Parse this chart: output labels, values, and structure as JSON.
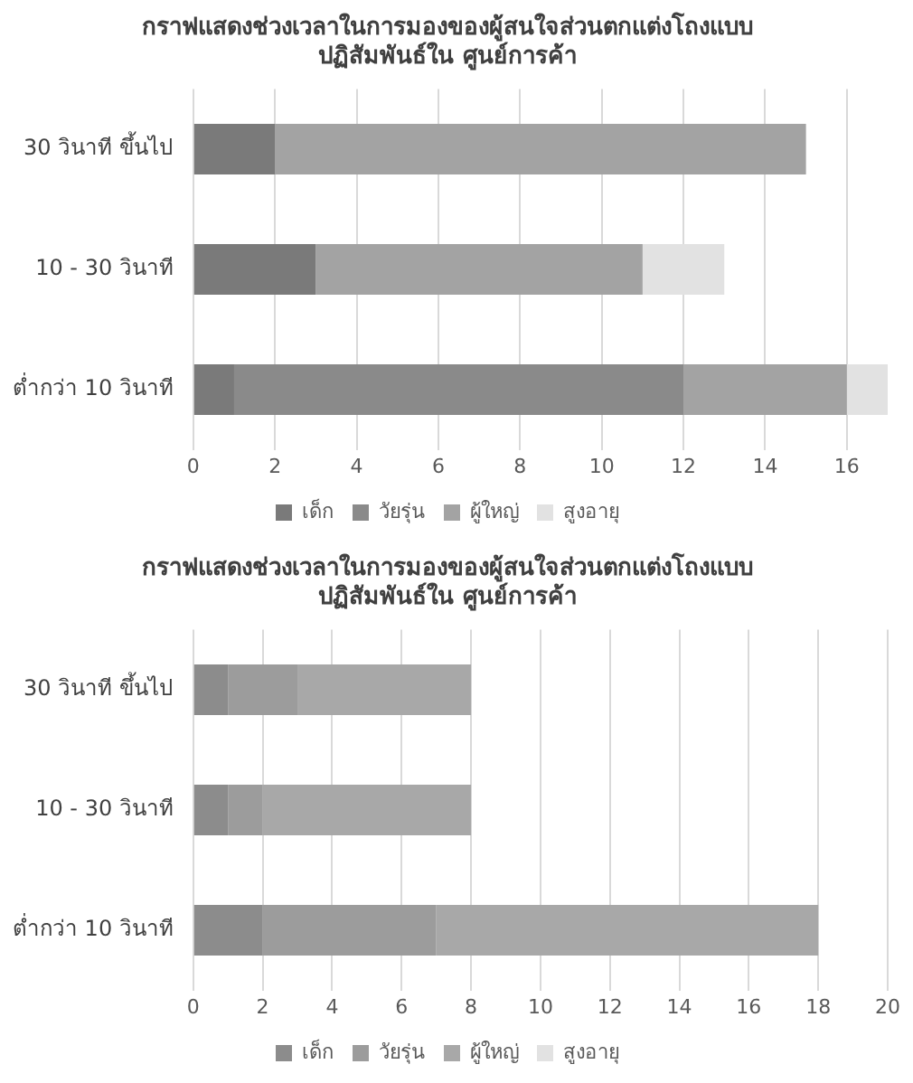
{
  "chart_data": [
    {
      "type": "bar",
      "orientation": "horizontal",
      "stacked": true,
      "title": "กราฟแสดงช่วงเวลาในการมองของผู้สนใจส่วนตกแต่งโถงแบบ\nปฏิสัมพันธ์ใน ศูนย์การค้า",
      "categories": [
        "30 วินาที ขึ้นไป",
        "10 - 30 วินาที",
        "ต่ำกว่า 10 วินาที"
      ],
      "series": [
        {
          "name": "เด็ก",
          "color": "#7a7a7a",
          "values": [
            2,
            3,
            1
          ]
        },
        {
          "name": "วัยรุ่น",
          "color": "#8a8a8a",
          "values": [
            0,
            0,
            11
          ]
        },
        {
          "name": "ผู้ใหญ่",
          "color": "#a3a3a3",
          "values": [
            13,
            8,
            4
          ]
        },
        {
          "name": "สูงอายุ",
          "color": "#e2e2e2",
          "values": [
            0,
            2,
            1
          ]
        }
      ],
      "xlim": [
        0,
        17
      ],
      "xticks": [
        0,
        2,
        4,
        6,
        8,
        10,
        12,
        14,
        16
      ],
      "grid": "x",
      "legend": "bottom"
    },
    {
      "type": "bar",
      "orientation": "horizontal",
      "stacked": true,
      "title": "กราฟแสดงช่วงเวลาในการมองของผู้สนใจส่วนตกแต่งโถงแบบ\nปฏิสัมพันธ์ใน ศูนย์การค้า",
      "categories": [
        "30 วินาที ขึ้นไป",
        "10 - 30 วินาที",
        "ต่ำกว่า 10 วินาที"
      ],
      "series": [
        {
          "name": "เด็ก",
          "color": "#8c8c8c",
          "values": [
            1,
            1,
            2
          ]
        },
        {
          "name": "วัยรุ่น",
          "color": "#9c9c9c",
          "values": [
            2,
            1,
            5
          ]
        },
        {
          "name": "ผู้ใหญ่",
          "color": "#a8a8a8",
          "values": [
            5,
            6,
            11
          ]
        },
        {
          "name": "สูงอายุ",
          "color": "#e2e2e2",
          "values": [
            0,
            0,
            0
          ]
        }
      ],
      "xlim": [
        0,
        20
      ],
      "xticks": [
        0,
        2,
        4,
        6,
        8,
        10,
        12,
        14,
        16,
        18,
        20
      ],
      "grid": "x",
      "legend": "bottom"
    }
  ]
}
